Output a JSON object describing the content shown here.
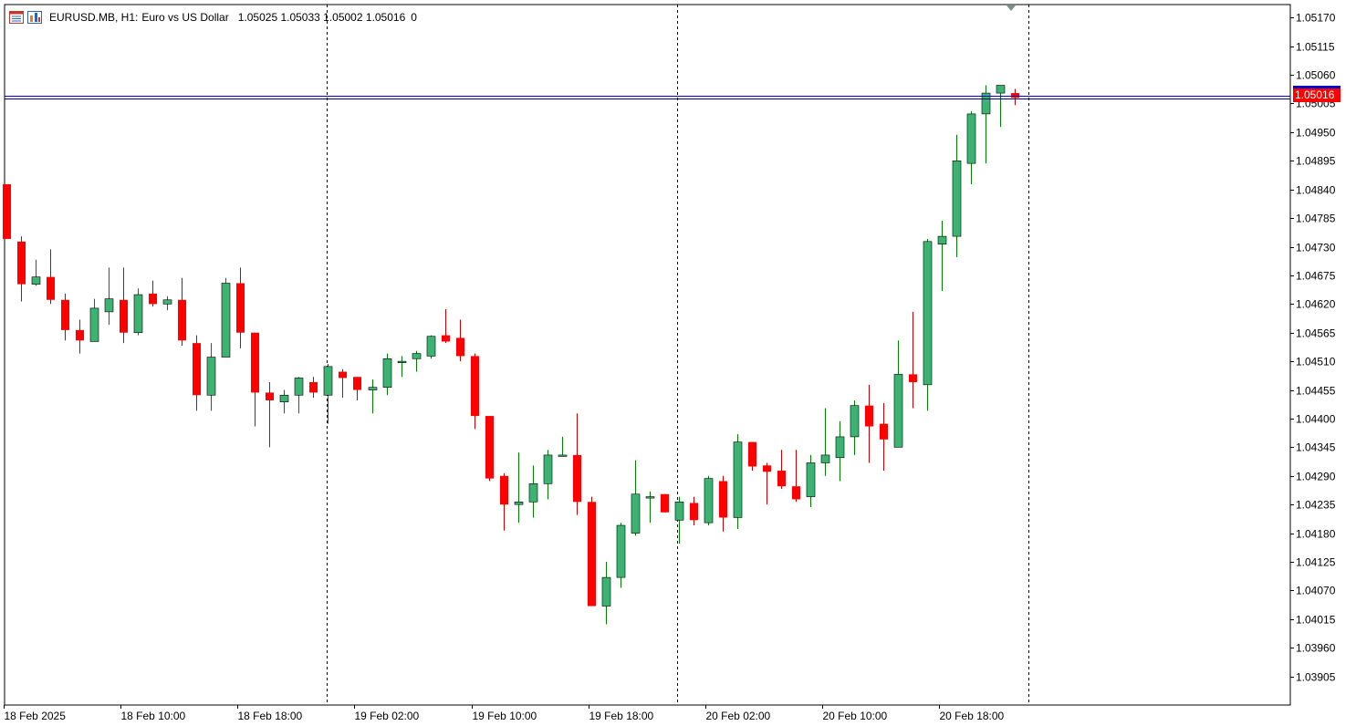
{
  "header": {
    "symbol_label": "EURUSD.MB, H1:",
    "description": "Euro vs US Dollar",
    "ohlc": "1.05025 1.05033 1.05002 1.05016",
    "tick_volume": "0",
    "icons": [
      "window-grid-icon",
      "chart-bars-icon"
    ]
  },
  "current_price": {
    "label": "1.05016",
    "value": 1.05016,
    "tag_color": "#ff0000",
    "bid_line_color": "#0000cc",
    "ask_line_color": "#000080"
  },
  "colors": {
    "bull": "#3cb371",
    "bear": "#ff0000",
    "wick_bull": "#008000",
    "wick_bear": "#cc0000",
    "grid": "#000000",
    "background": "#ffffff"
  },
  "chart_data": {
    "type": "candlestick",
    "ylim": [
      1.0385,
      1.05195
    ],
    "y_ticks": [
      "1.05170",
      "1.05115",
      "1.05060",
      "1.05005",
      "1.04950",
      "1.04895",
      "1.04840",
      "1.04785",
      "1.04730",
      "1.04675",
      "1.04620",
      "1.04565",
      "1.04510",
      "1.04455",
      "1.04400",
      "1.04345",
      "1.04290",
      "1.04235",
      "1.04180",
      "1.04125",
      "1.04070",
      "1.04015",
      "1.03960",
      "1.03905"
    ],
    "x_labels": [
      {
        "label": "18 Feb 2025",
        "bar": 0
      },
      {
        "label": "18 Feb 10:00",
        "bar": 8
      },
      {
        "label": "18 Feb 18:00",
        "bar": 16
      },
      {
        "label": "19 Feb 02:00",
        "bar": 24
      },
      {
        "label": "19 Feb 10:00",
        "bar": 32
      },
      {
        "label": "19 Feb 18:00",
        "bar": 40
      },
      {
        "label": "20 Feb 02:00",
        "bar": 48
      },
      {
        "label": "20 Feb 10:00",
        "bar": 56
      },
      {
        "label": "20 Feb 18:00",
        "bar": 64
      }
    ],
    "day_separators_bar": [
      21.9,
      45.9,
      69.9
    ],
    "candles": [
      {
        "o": 1.0485,
        "h": 1.0485,
        "l": 1.04745,
        "c": 1.04745
      },
      {
        "o": 1.0474,
        "h": 1.0475,
        "l": 1.04625,
        "c": 1.04658
      },
      {
        "o": 1.04658,
        "h": 1.04705,
        "l": 1.04655,
        "c": 1.04672
      },
      {
        "o": 1.04672,
        "h": 1.04725,
        "l": 1.0462,
        "c": 1.04628
      },
      {
        "o": 1.04628,
        "h": 1.0464,
        "l": 1.0455,
        "c": 1.0457
      },
      {
        "o": 1.0457,
        "h": 1.0459,
        "l": 1.04525,
        "c": 1.0455
      },
      {
        "o": 1.04548,
        "h": 1.0463,
        "l": 1.04548,
        "c": 1.04612
      },
      {
        "o": 1.04605,
        "h": 1.0469,
        "l": 1.0458,
        "c": 1.0463
      },
      {
        "o": 1.04628,
        "h": 1.0469,
        "l": 1.04545,
        "c": 1.04565
      },
      {
        "o": 1.04565,
        "h": 1.0465,
        "l": 1.0456,
        "c": 1.04638
      },
      {
        "o": 1.0464,
        "h": 1.04665,
        "l": 1.04615,
        "c": 1.0462
      },
      {
        "o": 1.0462,
        "h": 1.04635,
        "l": 1.04608,
        "c": 1.04628
      },
      {
        "o": 1.04628,
        "h": 1.0467,
        "l": 1.0454,
        "c": 1.0455
      },
      {
        "o": 1.04545,
        "h": 1.0456,
        "l": 1.04415,
        "c": 1.04445
      },
      {
        "o": 1.04445,
        "h": 1.04545,
        "l": 1.04415,
        "c": 1.04518
      },
      {
        "o": 1.04518,
        "h": 1.0467,
        "l": 1.04518,
        "c": 1.0466
      },
      {
        "o": 1.0466,
        "h": 1.0469,
        "l": 1.04535,
        "c": 1.04565
      },
      {
        "o": 1.04565,
        "h": 1.04565,
        "l": 1.04385,
        "c": 1.0445
      },
      {
        "o": 1.0445,
        "h": 1.0447,
        "l": 1.04345,
        "c": 1.04435
      },
      {
        "o": 1.04432,
        "h": 1.04455,
        "l": 1.0441,
        "c": 1.04445
      },
      {
        "o": 1.04445,
        "h": 1.0448,
        "l": 1.0441,
        "c": 1.04478
      },
      {
        "o": 1.0447,
        "h": 1.0448,
        "l": 1.0444,
        "c": 1.0445
      },
      {
        "o": 1.04445,
        "h": 1.04505,
        "l": 1.0439,
        "c": 1.045
      },
      {
        "o": 1.0449,
        "h": 1.04495,
        "l": 1.0444,
        "c": 1.04478
      },
      {
        "o": 1.0448,
        "h": 1.0448,
        "l": 1.04435,
        "c": 1.04455
      },
      {
        "o": 1.04455,
        "h": 1.04475,
        "l": 1.0441,
        "c": 1.0446
      },
      {
        "o": 1.0446,
        "h": 1.04525,
        "l": 1.04445,
        "c": 1.04515
      },
      {
        "o": 1.0451,
        "h": 1.0452,
        "l": 1.0448,
        "c": 1.0451
      },
      {
        "o": 1.04515,
        "h": 1.0453,
        "l": 1.0449,
        "c": 1.04525
      },
      {
        "o": 1.0452,
        "h": 1.0456,
        "l": 1.04515,
        "c": 1.04558
      },
      {
        "o": 1.0456,
        "h": 1.0461,
        "l": 1.04545,
        "c": 1.04548
      },
      {
        "o": 1.04555,
        "h": 1.0459,
        "l": 1.0451,
        "c": 1.0452
      },
      {
        "o": 1.0452,
        "h": 1.04525,
        "l": 1.0438,
        "c": 1.04405
      },
      {
        "o": 1.04405,
        "h": 1.04405,
        "l": 1.0428,
        "c": 1.04285
      },
      {
        "o": 1.0429,
        "h": 1.04295,
        "l": 1.04185,
        "c": 1.04235
      },
      {
        "o": 1.04235,
        "h": 1.04335,
        "l": 1.042,
        "c": 1.0424
      },
      {
        "o": 1.0424,
        "h": 1.0431,
        "l": 1.0421,
        "c": 1.04275
      },
      {
        "o": 1.04275,
        "h": 1.0434,
        "l": 1.04245,
        "c": 1.0433
      },
      {
        "o": 1.0433,
        "h": 1.04365,
        "l": 1.0433,
        "c": 1.0433
      },
      {
        "o": 1.0433,
        "h": 1.0441,
        "l": 1.04215,
        "c": 1.0424
      },
      {
        "o": 1.0424,
        "h": 1.0425,
        "l": 1.0404,
        "c": 1.0404
      },
      {
        "o": 1.0404,
        "h": 1.04125,
        "l": 1.04005,
        "c": 1.04095
      },
      {
        "o": 1.04095,
        "h": 1.042,
        "l": 1.04075,
        "c": 1.04195
      },
      {
        "o": 1.0418,
        "h": 1.0432,
        "l": 1.04175,
        "c": 1.04255
      },
      {
        "o": 1.0425,
        "h": 1.0426,
        "l": 1.042,
        "c": 1.0425
      },
      {
        "o": 1.04255,
        "h": 1.04255,
        "l": 1.0422,
        "c": 1.0422
      },
      {
        "o": 1.04205,
        "h": 1.0425,
        "l": 1.0416,
        "c": 1.0424
      },
      {
        "o": 1.04238,
        "h": 1.0425,
        "l": 1.04195,
        "c": 1.04205
      },
      {
        "o": 1.042,
        "h": 1.0429,
        "l": 1.04195,
        "c": 1.04285
      },
      {
        "o": 1.0428,
        "h": 1.0429,
        "l": 1.04183,
        "c": 1.0421
      },
      {
        "o": 1.0421,
        "h": 1.0437,
        "l": 1.04188,
        "c": 1.04355
      },
      {
        "o": 1.04355,
        "h": 1.04355,
        "l": 1.043,
        "c": 1.04308
      },
      {
        "o": 1.0431,
        "h": 1.04315,
        "l": 1.04235,
        "c": 1.04298
      },
      {
        "o": 1.043,
        "h": 1.0434,
        "l": 1.04265,
        "c": 1.0427
      },
      {
        "o": 1.0427,
        "h": 1.0434,
        "l": 1.0424,
        "c": 1.04245
      },
      {
        "o": 1.0425,
        "h": 1.0433,
        "l": 1.0423,
        "c": 1.04315
      },
      {
        "o": 1.04315,
        "h": 1.0442,
        "l": 1.0429,
        "c": 1.0433
      },
      {
        "o": 1.04325,
        "h": 1.04395,
        "l": 1.0428,
        "c": 1.04365
      },
      {
        "o": 1.04365,
        "h": 1.04435,
        "l": 1.0433,
        "c": 1.04425
      },
      {
        "o": 1.04425,
        "h": 1.04465,
        "l": 1.04315,
        "c": 1.04385
      },
      {
        "o": 1.0439,
        "h": 1.0443,
        "l": 1.043,
        "c": 1.0436
      },
      {
        "o": 1.04345,
        "h": 1.0455,
        "l": 1.04345,
        "c": 1.04485
      },
      {
        "o": 1.04485,
        "h": 1.04605,
        "l": 1.0442,
        "c": 1.0447
      },
      {
        "o": 1.04465,
        "h": 1.04745,
        "l": 1.04415,
        "c": 1.0474
      },
      {
        "o": 1.04735,
        "h": 1.0478,
        "l": 1.04645,
        "c": 1.0475
      },
      {
        "o": 1.0475,
        "h": 1.04945,
        "l": 1.0471,
        "c": 1.04895
      },
      {
        "o": 1.0489,
        "h": 1.0499,
        "l": 1.0485,
        "c": 1.04985
      },
      {
        "o": 1.04985,
        "h": 1.0504,
        "l": 1.0489,
        "c": 1.05025
      },
      {
        "o": 1.05025,
        "h": 1.0504,
        "l": 1.0496,
        "c": 1.0504
      },
      {
        "o": 1.05025,
        "h": 1.05033,
        "l": 1.05002,
        "c": 1.05016
      }
    ]
  }
}
